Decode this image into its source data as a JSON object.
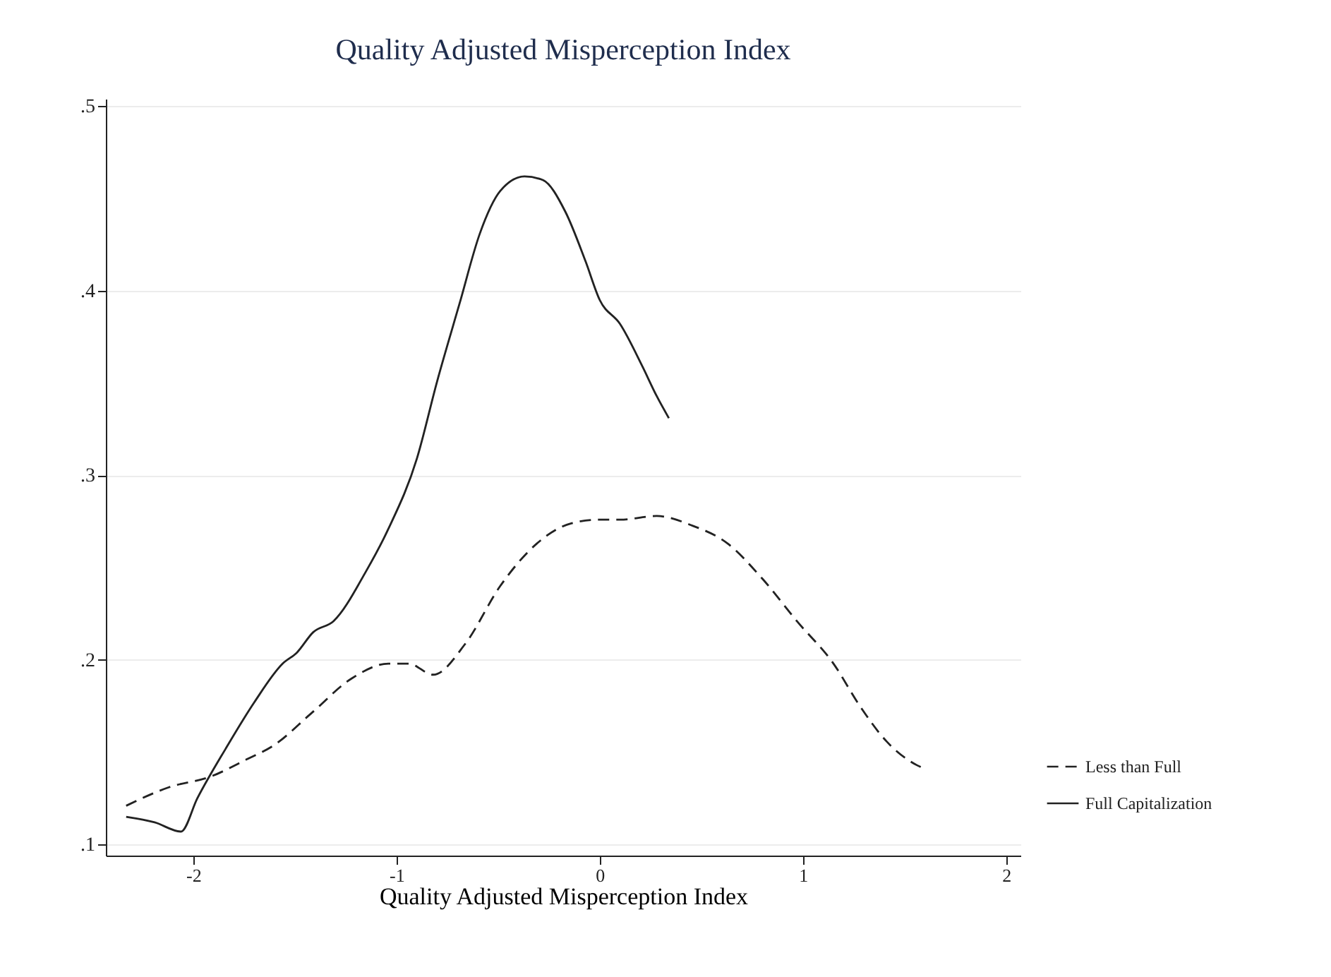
{
  "chart_data": {
    "type": "line",
    "title": "Quality Adjusted Misperception Index",
    "xlabel": "Quality Adjusted Misperception Index",
    "xlim": [
      -2.43,
      2.07
    ],
    "xticks": [
      -2,
      -1,
      0,
      1,
      2
    ],
    "ylim": [
      0.094,
      0.504
    ],
    "yticks": [
      {
        "value": 0.1,
        "label": ".1"
      },
      {
        "value": 0.2,
        "label": ".2"
      },
      {
        "value": 0.3,
        "label": ".3"
      },
      {
        "value": 0.4,
        "label": ".4"
      },
      {
        "value": 0.5,
        "label": ".5"
      }
    ],
    "grid": "y",
    "legend": "bottom right",
    "marker": "none",
    "series": [
      {
        "name": "Less than Full",
        "color": "#222222",
        "line_style": "dashed",
        "x": [
          -2.33,
          -2.12,
          -1.91,
          -1.74,
          -1.6,
          -1.42,
          -1.22,
          -1.04,
          -0.94,
          -0.82,
          -0.66,
          -0.49,
          -0.31,
          -0.14,
          0,
          0.1,
          0.28,
          0.45,
          0.63,
          0.8,
          0.97,
          1.15,
          1.28,
          1.41,
          1.56,
          1.6
        ],
        "values": [
          0.121,
          0.131,
          0.137,
          0.146,
          0.154,
          0.171,
          0.19,
          0.198,
          0.198,
          0.192,
          0.209,
          0.24,
          0.263,
          0.274,
          0.276,
          0.276,
          0.278,
          0.273,
          0.263,
          0.244,
          0.221,
          0.198,
          0.175,
          0.156,
          0.143,
          0.141
        ]
      },
      {
        "name": "Full Capitalization",
        "color": "#222222",
        "line_style": "solid",
        "x": [
          -2.33,
          -2.19,
          -2.06,
          -1.98,
          -1.84,
          -1.7,
          -1.56,
          -1.49,
          -1.41,
          -1.31,
          -1.15,
          -1.04,
          -0.9,
          -0.8,
          -0.69,
          -0.59,
          -0.49,
          -0.37,
          -0.28,
          -0.17,
          -0.07,
          0,
          0.1,
          0.21,
          0.28,
          0.34
        ],
        "values": [
          0.115,
          0.112,
          0.107,
          0.125,
          0.152,
          0.177,
          0.198,
          0.204,
          0.215,
          0.221,
          0.248,
          0.271,
          0.309,
          0.351,
          0.393,
          0.431,
          0.454,
          0.462,
          0.46,
          0.443,
          0.416,
          0.395,
          0.382,
          0.359,
          0.343,
          0.331
        ]
      }
    ]
  }
}
